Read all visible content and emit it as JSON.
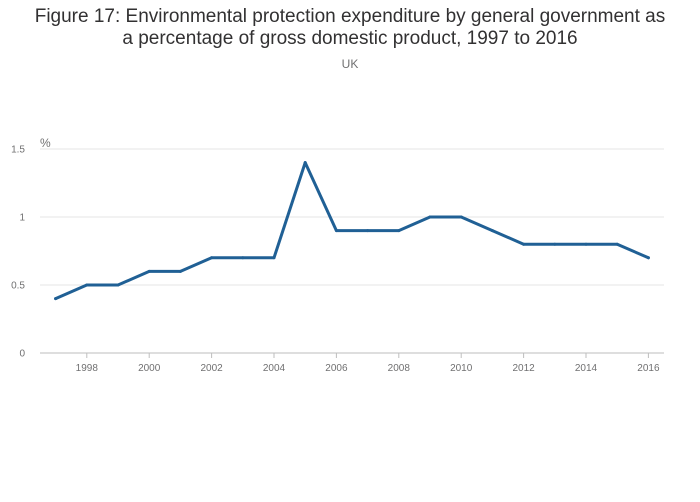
{
  "title_line1": "Figure 17: Environmental protection expenditure by general government as",
  "title_line2": "a percentage of gross domestic product, 1997 to 2016",
  "subtitle": "UK",
  "colors": {
    "line": "#206095",
    "grid": "#e6e6e6",
    "axis": "#bebebe",
    "text": "#707071"
  },
  "chart_data": {
    "type": "line",
    "title": "Figure 17: Environmental protection expenditure by general government as a percentage of gross domestic product, 1997 to 2016",
    "subtitle": "UK",
    "y_unit_label": "%",
    "x": [
      1997,
      1998,
      1999,
      2000,
      2001,
      2002,
      2003,
      2004,
      2005,
      2006,
      2007,
      2008,
      2009,
      2010,
      2011,
      2012,
      2013,
      2014,
      2015,
      2016
    ],
    "series": [
      {
        "values": [
          0.4,
          0.5,
          0.5,
          0.6,
          0.6,
          0.7,
          0.7,
          0.7,
          1.4,
          0.9,
          0.9,
          0.9,
          1.0,
          1.0,
          0.9,
          0.8,
          0.8,
          0.8,
          0.8,
          0.7
        ]
      }
    ],
    "xlim": [
      1996.5,
      2016.5
    ],
    "ylim": [
      0,
      1.5
    ],
    "x_ticks": [
      "1998",
      "2000",
      "2002",
      "2004",
      "2006",
      "2008",
      "2010",
      "2012",
      "2014",
      "2016"
    ],
    "y_ticks": [
      "0",
      "0.5",
      "1",
      "1.5"
    ],
    "grid": true,
    "legend": "none"
  }
}
